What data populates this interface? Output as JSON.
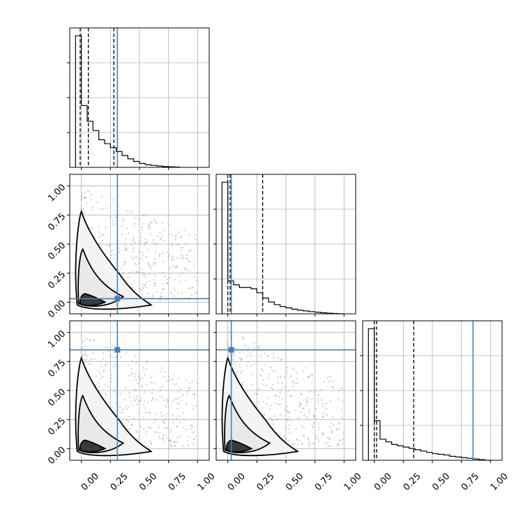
{
  "figure": {
    "tick_labels": [
      "0.00",
      "0.25",
      "0.50",
      "0.75",
      "1.00"
    ],
    "colors": {
      "truth": "#4682b4",
      "hist": "#000000",
      "quantile": "#000000",
      "grid": "#b0b0b0",
      "points": "#7f7f7f"
    }
  },
  "chart_data": {
    "type": "corner",
    "parameters": 3,
    "grid": true,
    "axis_range": [
      -0.1,
      1.1
    ],
    "ticks": [
      0.0,
      0.25,
      0.5,
      0.75,
      1.0
    ],
    "truths": [
      0.31,
      0.03,
      0.85
    ],
    "marginals": [
      {
        "bin_edges": [
          -0.05,
          0.0,
          0.05,
          0.1,
          0.15,
          0.2,
          0.25,
          0.3,
          0.35,
          0.4,
          0.45,
          0.5,
          0.55,
          0.6,
          0.65,
          0.7,
          0.75,
          0.8,
          0.85
        ],
        "heights": [
          1.0,
          0.47,
          0.35,
          0.28,
          0.21,
          0.18,
          0.15,
          0.12,
          0.09,
          0.065,
          0.045,
          0.03,
          0.02,
          0.015,
          0.01,
          0.006,
          0.004,
          0.002
        ],
        "quantiles": [
          -0.01,
          0.06,
          0.28
        ]
      },
      {
        "bin_edges": [
          -0.05,
          0.0,
          0.05,
          0.1,
          0.15,
          0.2,
          0.25,
          0.3,
          0.35,
          0.4,
          0.45,
          0.5,
          0.55,
          0.6,
          0.65,
          0.7,
          0.75,
          0.8,
          0.85,
          0.9,
          0.95,
          1.0
        ],
        "heights": [
          1.0,
          0.25,
          0.22,
          0.2,
          0.2,
          0.19,
          0.16,
          0.12,
          0.09,
          0.07,
          0.055,
          0.045,
          0.035,
          0.028,
          0.022,
          0.017,
          0.012,
          0.008,
          0.005,
          0.003,
          0.0
        ],
        "quantiles": [
          0.0,
          0.02,
          0.3
        ]
      },
      {
        "bin_edges": [
          -0.05,
          0.0,
          0.05,
          0.1,
          0.15,
          0.2,
          0.25,
          0.3,
          0.35,
          0.4,
          0.45,
          0.5,
          0.55,
          0.6,
          0.65,
          0.7,
          0.75,
          0.8,
          0.85,
          0.9,
          0.95,
          1.0
        ],
        "heights": [
          1.0,
          0.3,
          0.16,
          0.14,
          0.12,
          0.11,
          0.1,
          0.09,
          0.08,
          0.07,
          0.06,
          0.05,
          0.045,
          0.04,
          0.03,
          0.025,
          0.02,
          0.015,
          0.01,
          0.005,
          0.0
        ],
        "quantiles": [
          0.0,
          0.02,
          0.34
        ]
      }
    ],
    "scatter_sample_size": 1800,
    "contour_levels": 3
  }
}
